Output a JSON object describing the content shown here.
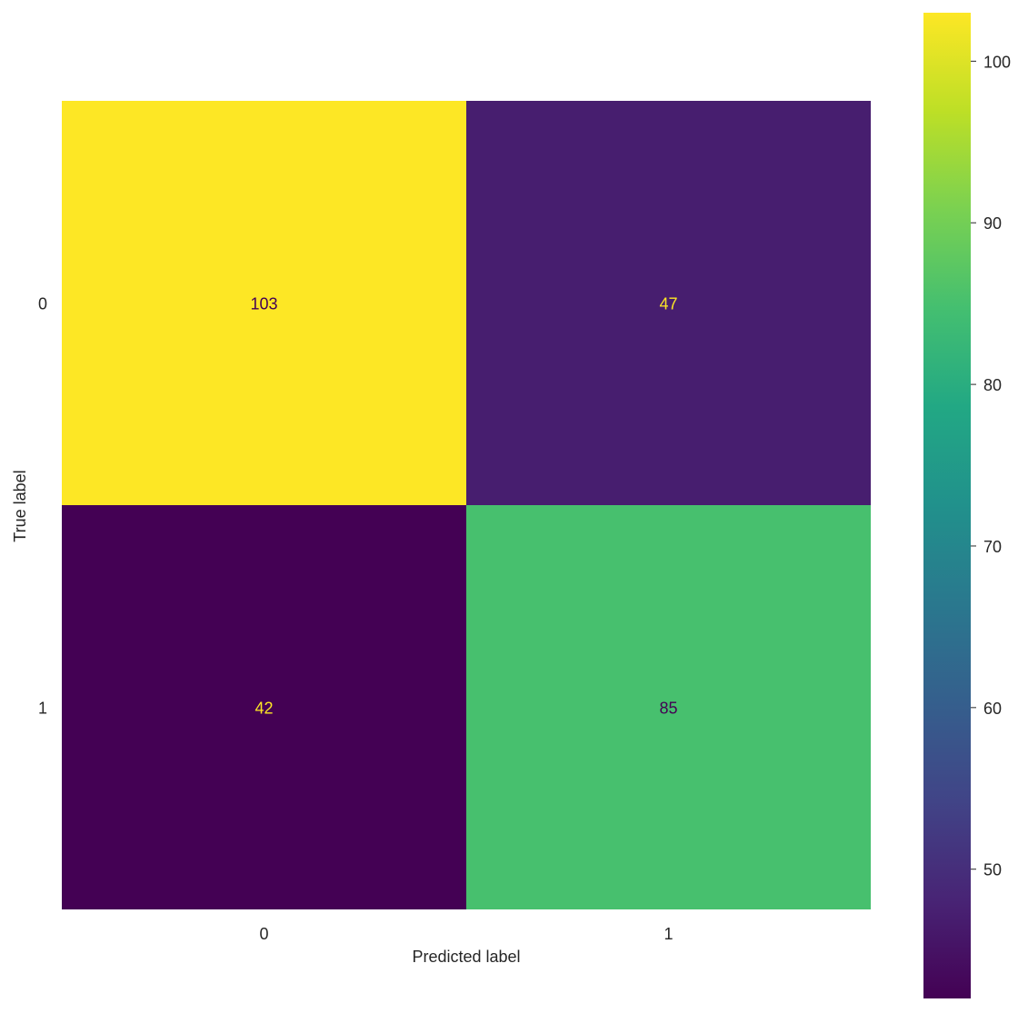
{
  "chart_data": {
    "type": "heatmap",
    "title": "",
    "xlabel": "Predicted label",
    "ylabel": "True label",
    "x_categories": [
      "0",
      "1"
    ],
    "y_categories": [
      "0",
      "1"
    ],
    "values": [
      [
        103,
        47
      ],
      [
        42,
        85
      ]
    ],
    "grid": false,
    "colormap": "viridis",
    "colorbar": {
      "min": 42,
      "max": 103,
      "ticks": [
        50,
        60,
        70,
        80,
        90,
        100
      ],
      "tick_labels": [
        "50",
        "60",
        "70",
        "80",
        "90",
        "100"
      ],
      "placement": "right"
    },
    "colors": {
      "high_text": "#440154",
      "low_text": "#fde725"
    }
  }
}
